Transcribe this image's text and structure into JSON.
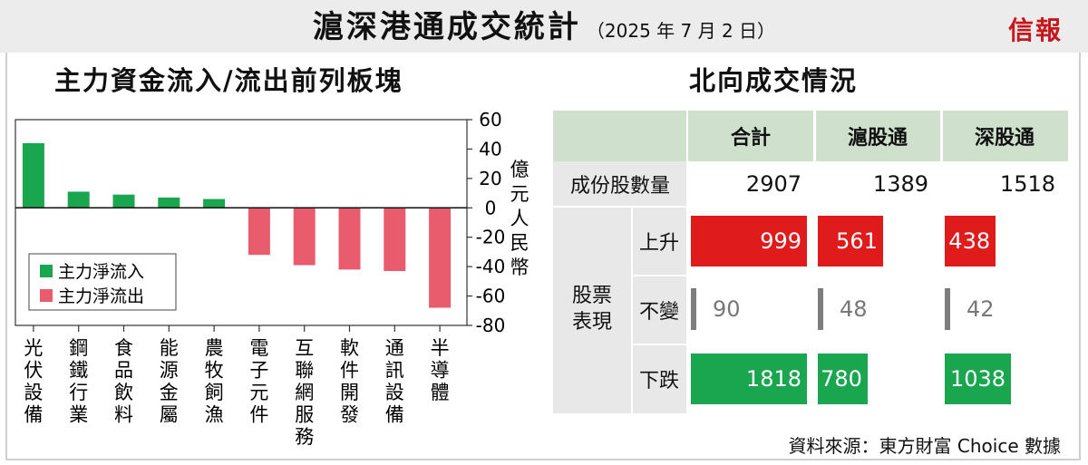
{
  "header": {
    "title": "滬深港通成交統計",
    "date": "（2025 年 7 月 2 日）",
    "logo": "信報"
  },
  "left_panel": {
    "title": "主力資金流入/流出前列板塊"
  },
  "right_panel": {
    "title": "北向成交情況"
  },
  "chart_data": {
    "type": "bar",
    "title": "主力資金流入/流出前列板塊",
    "categories": [
      "光伏設備",
      "鋼鐵行業",
      "食品飲料",
      "能源金屬",
      "農牧飼漁",
      "電子元件",
      "互聯網服務",
      "軟件開發",
      "通訊設備",
      "半導體"
    ],
    "series": [
      {
        "name": "主力淨流入",
        "color": "#1aa64f",
        "values": [
          44,
          11,
          9,
          7,
          6,
          null,
          null,
          null,
          null,
          null
        ]
      },
      {
        "name": "主力淨流出",
        "color": "#e85c6e",
        "values": [
          null,
          null,
          null,
          null,
          null,
          -32,
          -39,
          -42,
          -43,
          -68
        ]
      }
    ],
    "ylabel": "億元人民幣",
    "ylim": [
      -80,
      60
    ],
    "yticks": [
      60,
      40,
      20,
      0,
      -20,
      -40,
      -60,
      -80
    ],
    "legend": "bottom-left",
    "grid": false
  },
  "table": {
    "columns": [
      "合計",
      "滬股通",
      "深股通"
    ],
    "row_count_label": "成份股數量",
    "row_counts": [
      2907,
      1389,
      1518
    ],
    "group_label_line1": "股票",
    "group_label_line2": "表現",
    "rows": [
      {
        "label": "上升",
        "color": "#e01b1b",
        "values": [
          999,
          561,
          438
        ]
      },
      {
        "label": "不變",
        "color": "#7d7d7d",
        "values": [
          90,
          48,
          42
        ]
      },
      {
        "label": "下跌",
        "color": "#1aa64f",
        "values": [
          1818,
          780,
          1038
        ]
      }
    ]
  },
  "source": "資料來源：東方財富 Choice 數據"
}
